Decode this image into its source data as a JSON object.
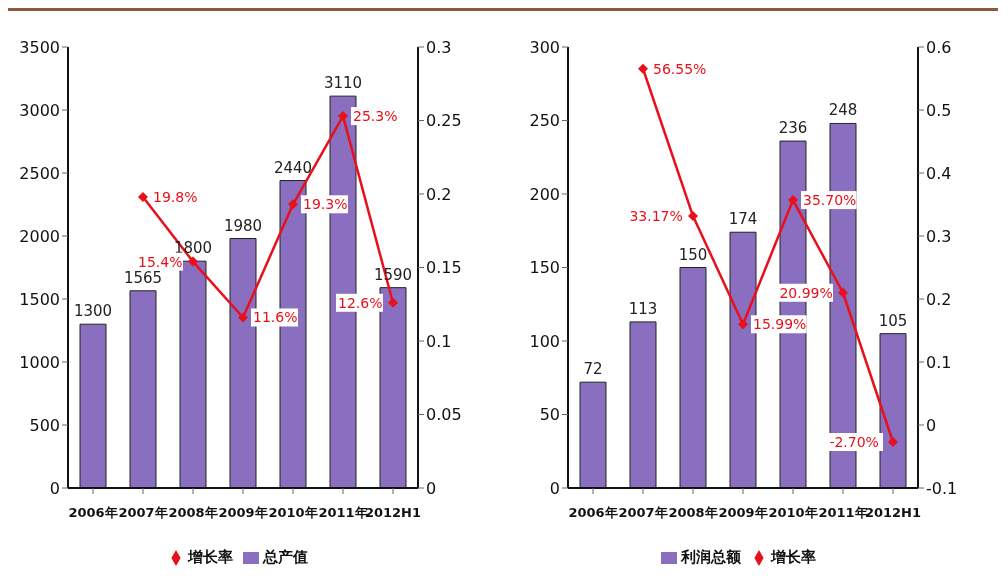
{
  "chart_data": [
    {
      "type": "bar",
      "categories": [
        "2006年",
        "2007年",
        "2008年",
        "2009年",
        "2010年",
        "2011年",
        "2012H1"
      ],
      "ylim": [
        0,
        3500
      ],
      "yticks": [
        0,
        500,
        1000,
        1500,
        2000,
        2500,
        3000,
        3500
      ],
      "y2lim": [
        0,
        0.3
      ],
      "y2ticks": [
        0,
        0.05,
        0.1,
        0.15,
        0.2,
        0.25,
        0.3
      ],
      "legend": "bottom",
      "grid": false,
      "data_labels": true,
      "series": [
        {
          "name": "总产值",
          "color": "#8a6fc0",
          "values": [
            1300,
            1565,
            1800,
            1980,
            2440,
            3110,
            1590
          ]
        },
        {
          "name": "增长率",
          "type": "line",
          "axis": "y2",
          "color": "#e8101a",
          "marker": "diamond",
          "values": [
            null,
            0.198,
            0.154,
            0.116,
            0.193,
            0.253,
            0.126
          ],
          "value_labels": [
            null,
            "19.8%",
            "15.4%",
            "11.6%",
            "19.3%",
            "25.3%",
            "12.6%"
          ]
        }
      ]
    },
    {
      "type": "bar",
      "categories": [
        "2006年",
        "2007年",
        "2008年",
        "2009年",
        "2010年",
        "2011年",
        "2012H1"
      ],
      "ylim": [
        0,
        300
      ],
      "yticks": [
        0,
        50,
        100,
        150,
        200,
        250,
        300
      ],
      "y2lim": [
        -0.1,
        0.6
      ],
      "y2ticks": [
        {
          "value": -0.1,
          "label": "-0.1"
        },
        0,
        0.1,
        0.2,
        0.3,
        0.4,
        0.5,
        0.6
      ],
      "legend": "bottom",
      "grid": false,
      "data_labels": true,
      "series": [
        {
          "name": "利润总额",
          "color": "#8a6fc0",
          "values": [
            72,
            113,
            150,
            174,
            236,
            248,
            105
          ]
        },
        {
          "name": "增长率",
          "type": "line",
          "axis": "y2",
          "color": "#e8101a",
          "marker": "diamond",
          "values": [
            null,
            0.5655,
            0.3317,
            0.1599,
            0.357,
            0.2099,
            -0.027
          ],
          "value_labels": [
            null,
            "56.55%",
            "33.17%",
            "15.99%",
            "35.70%",
            "20.99%",
            "-2.70%"
          ]
        }
      ]
    }
  ]
}
